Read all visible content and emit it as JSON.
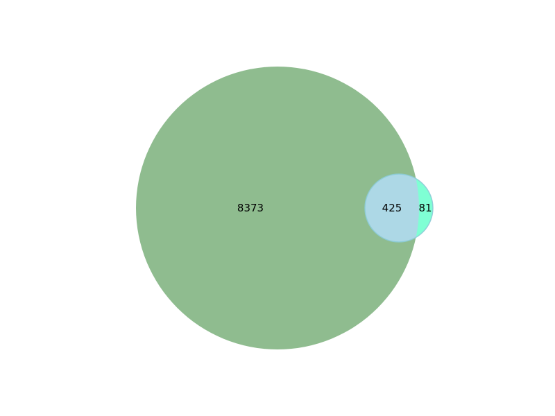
{
  "venn": {
    "sets": [
      {
        "color": "#8fbc8f"
      },
      {
        "color": "#7fffd4"
      }
    ],
    "overlap_color": "#add8e6",
    "regions": {
      "only_a": "8373",
      "both": "425",
      "only_b": "81"
    }
  }
}
